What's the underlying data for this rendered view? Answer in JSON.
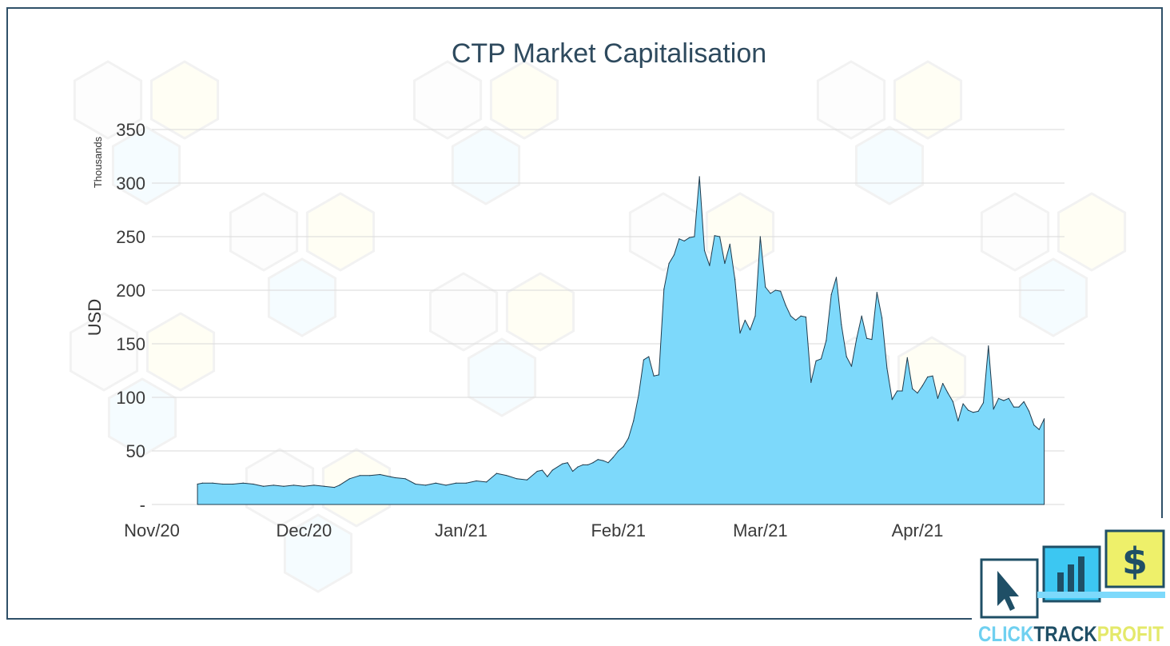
{
  "chart_data": {
    "type": "area",
    "title": "CTP Market Capitalisation",
    "xlabel": "",
    "ylabel": "USD",
    "y_units": "Thousands",
    "ylim": [
      0,
      350
    ],
    "yticks": [
      0,
      50,
      100,
      150,
      200,
      250,
      300,
      350
    ],
    "ytick_labels": [
      "-",
      "50",
      "100",
      "150",
      "200",
      "250",
      "300",
      "350"
    ],
    "x_range": [
      "2020-11-01",
      "2021-04-30"
    ],
    "xticks": [
      {
        "date": "2020-11-01",
        "label": "Nov/20"
      },
      {
        "date": "2020-12-01",
        "label": "Dec/20"
      },
      {
        "date": "2021-01-01",
        "label": "Jan/21"
      },
      {
        "date": "2021-02-01",
        "label": "Feb/21"
      },
      {
        "date": "2021-03-01",
        "label": "Mar/21"
      },
      {
        "date": "2021-04-01",
        "label": "Apr/21"
      }
    ],
    "grid": true,
    "fill_color": "#7dd9fb",
    "line_color": "#1f3b4d",
    "series": [
      {
        "points": [
          [
            "2020-11-10",
            19
          ],
          [
            "2020-11-11",
            20
          ],
          [
            "2020-11-13",
            20
          ],
          [
            "2020-11-15",
            19
          ],
          [
            "2020-11-17",
            19
          ],
          [
            "2020-11-19",
            20
          ],
          [
            "2020-11-21",
            19
          ],
          [
            "2020-11-23",
            17
          ],
          [
            "2020-11-25",
            18
          ],
          [
            "2020-11-27",
            17
          ],
          [
            "2020-11-29",
            18
          ],
          [
            "2020-12-01",
            17
          ],
          [
            "2020-12-03",
            18
          ],
          [
            "2020-12-05",
            17
          ],
          [
            "2020-12-07",
            16
          ],
          [
            "2020-12-08",
            18
          ],
          [
            "2020-12-10",
            24
          ],
          [
            "2020-12-12",
            27
          ],
          [
            "2020-12-14",
            27
          ],
          [
            "2020-12-16",
            28
          ],
          [
            "2020-12-18",
            26
          ],
          [
            "2020-12-19",
            25
          ],
          [
            "2020-12-21",
            24
          ],
          [
            "2020-12-23",
            19
          ],
          [
            "2020-12-25",
            18
          ],
          [
            "2020-12-27",
            20
          ],
          [
            "2020-12-29",
            18
          ],
          [
            "2020-12-31",
            20
          ],
          [
            "2021-01-02",
            20
          ],
          [
            "2021-01-04",
            22
          ],
          [
            "2021-01-06",
            21
          ],
          [
            "2021-01-08",
            29
          ],
          [
            "2021-01-10",
            27
          ],
          [
            "2021-01-12",
            24
          ],
          [
            "2021-01-14",
            23
          ],
          [
            "2021-01-16",
            31
          ],
          [
            "2021-01-17",
            32
          ],
          [
            "2021-01-18",
            26
          ],
          [
            "2021-01-19",
            32
          ],
          [
            "2021-01-21",
            38
          ],
          [
            "2021-01-22",
            39
          ],
          [
            "2021-01-23",
            31
          ],
          [
            "2021-01-24",
            35
          ],
          [
            "2021-01-25",
            37
          ],
          [
            "2021-01-26",
            37
          ],
          [
            "2021-01-27",
            39
          ],
          [
            "2021-01-28",
            42
          ],
          [
            "2021-01-29",
            41
          ],
          [
            "2021-01-30",
            39
          ],
          [
            "2021-01-31",
            44
          ],
          [
            "2021-02-01",
            50
          ],
          [
            "2021-02-02",
            54
          ],
          [
            "2021-02-03",
            62
          ],
          [
            "2021-02-04",
            78
          ],
          [
            "2021-02-05",
            102
          ],
          [
            "2021-02-06",
            135
          ],
          [
            "2021-02-07",
            138
          ],
          [
            "2021-02-08",
            120
          ],
          [
            "2021-02-09",
            121
          ],
          [
            "2021-02-10",
            201
          ],
          [
            "2021-02-11",
            225
          ],
          [
            "2021-02-12",
            233
          ],
          [
            "2021-02-13",
            248
          ],
          [
            "2021-02-14",
            246
          ],
          [
            "2021-02-15",
            249
          ],
          [
            "2021-02-16",
            250
          ],
          [
            "2021-02-17",
            306
          ],
          [
            "2021-02-18",
            237
          ],
          [
            "2021-02-19",
            223
          ],
          [
            "2021-02-20",
            251
          ],
          [
            "2021-02-21",
            250
          ],
          [
            "2021-02-22",
            225
          ],
          [
            "2021-02-23",
            243
          ],
          [
            "2021-02-24",
            210
          ],
          [
            "2021-02-25",
            160
          ],
          [
            "2021-02-26",
            172
          ],
          [
            "2021-02-27",
            163
          ],
          [
            "2021-02-28",
            176
          ],
          [
            "2021-03-01",
            250
          ],
          [
            "2021-03-02",
            203
          ],
          [
            "2021-03-03",
            197
          ],
          [
            "2021-03-04",
            200
          ],
          [
            "2021-03-05",
            199
          ],
          [
            "2021-03-06",
            186
          ],
          [
            "2021-03-07",
            176
          ],
          [
            "2021-03-08",
            172
          ],
          [
            "2021-03-09",
            176
          ],
          [
            "2021-03-10",
            175
          ],
          [
            "2021-03-11",
            114
          ],
          [
            "2021-03-12",
            134
          ],
          [
            "2021-03-13",
            136
          ],
          [
            "2021-03-14",
            153
          ],
          [
            "2021-03-15",
            196
          ],
          [
            "2021-03-16",
            212
          ],
          [
            "2021-03-17",
            168
          ],
          [
            "2021-03-18",
            138
          ],
          [
            "2021-03-19",
            129
          ],
          [
            "2021-03-20",
            155
          ],
          [
            "2021-03-21",
            176
          ],
          [
            "2021-03-22",
            155
          ],
          [
            "2021-03-23",
            154
          ],
          [
            "2021-03-24",
            198
          ],
          [
            "2021-03-25",
            174
          ],
          [
            "2021-03-26",
            127
          ],
          [
            "2021-03-27",
            98
          ],
          [
            "2021-03-28",
            106
          ],
          [
            "2021-03-29",
            106
          ],
          [
            "2021-03-30",
            137
          ],
          [
            "2021-03-31",
            108
          ],
          [
            "2021-04-01",
            104
          ],
          [
            "2021-04-02",
            111
          ],
          [
            "2021-04-03",
            119
          ],
          [
            "2021-04-04",
            120
          ],
          [
            "2021-04-05",
            99
          ],
          [
            "2021-04-06",
            113
          ],
          [
            "2021-04-07",
            104
          ],
          [
            "2021-04-08",
            96
          ],
          [
            "2021-04-09",
            78
          ],
          [
            "2021-04-10",
            94
          ],
          [
            "2021-04-11",
            88
          ],
          [
            "2021-04-12",
            86
          ],
          [
            "2021-04-13",
            87
          ],
          [
            "2021-04-14",
            95
          ],
          [
            "2021-04-15",
            148
          ],
          [
            "2021-04-16",
            89
          ],
          [
            "2021-04-17",
            99
          ],
          [
            "2021-04-18",
            97
          ],
          [
            "2021-04-19",
            99
          ],
          [
            "2021-04-20",
            91
          ],
          [
            "2021-04-21",
            91
          ],
          [
            "2021-04-22",
            96
          ],
          [
            "2021-04-23",
            87
          ],
          [
            "2021-04-24",
            74
          ],
          [
            "2021-04-25",
            70
          ],
          [
            "2021-04-26",
            80
          ]
        ]
      }
    ]
  },
  "logo": {
    "text_click": "CLICK",
    "text_track": "TRACK",
    "text_profit": "PROFIT",
    "dollar": "$"
  }
}
